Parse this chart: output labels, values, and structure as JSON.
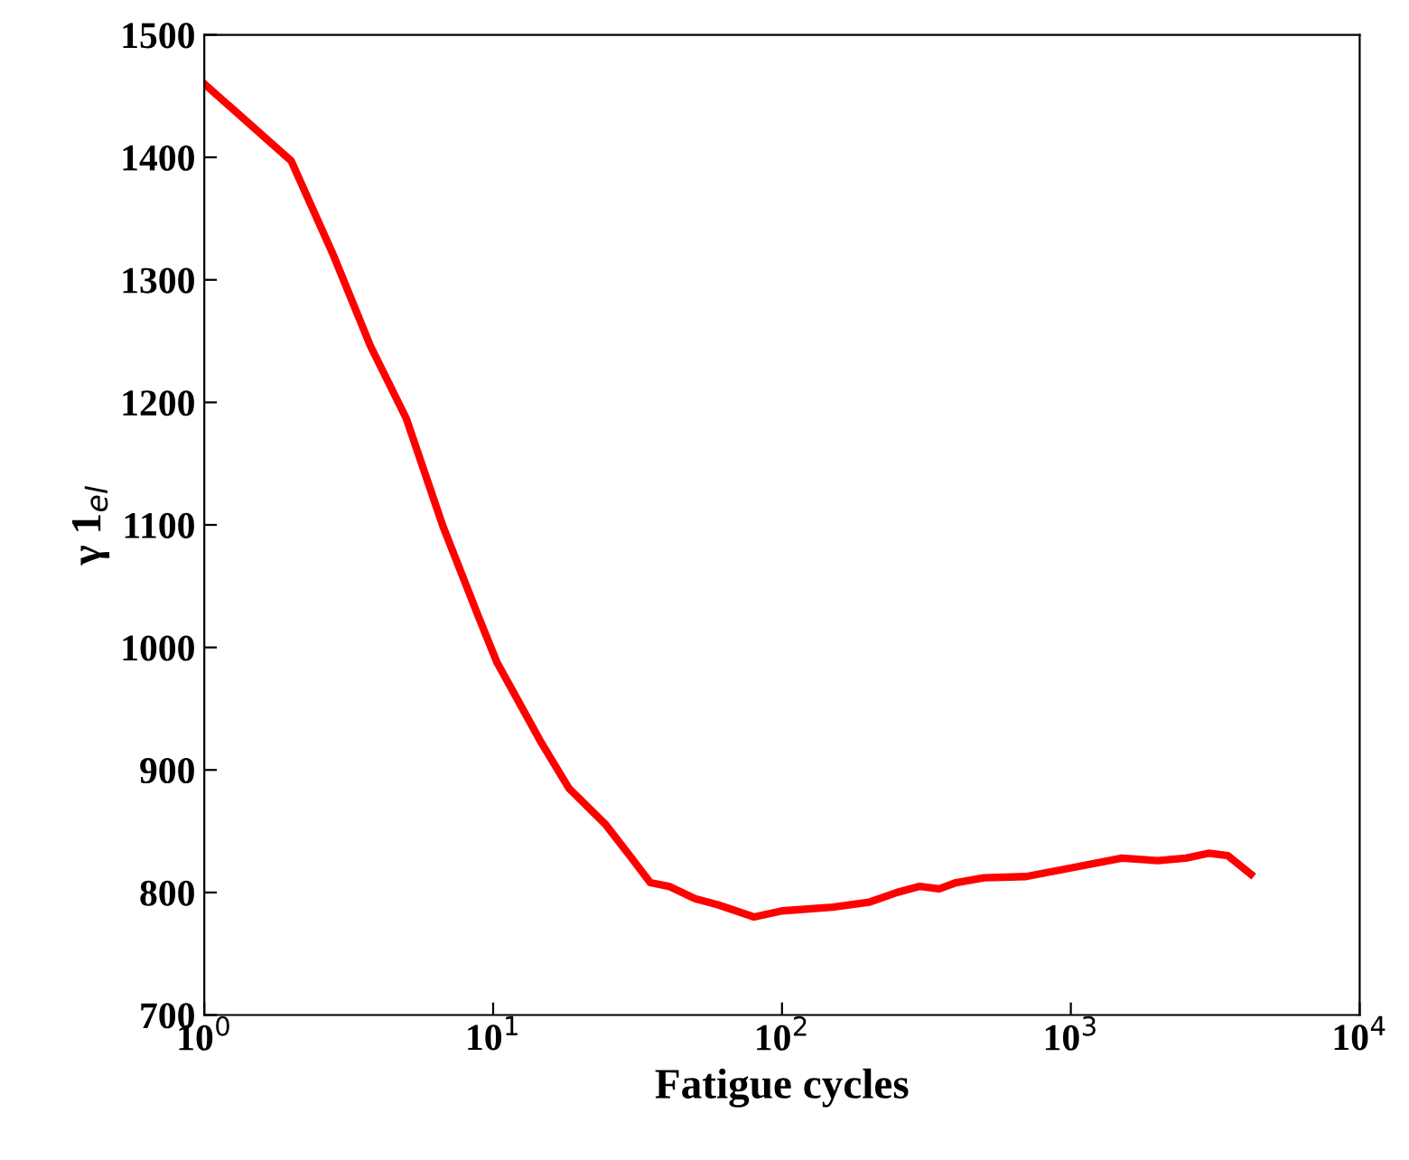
{
  "chart_data": {
    "type": "line",
    "xlabel": "Fatigue cycles",
    "ylabel": "γ 1$_{el}$",
    "log": "x",
    "series": [
      {
        "color": "#ff0000",
        "x": [
          1,
          2,
          2.8,
          3.76,
          5,
          6.7,
          8.9,
          10.3,
          14.7,
          18.3,
          24.4,
          30.4,
          35,
          40.6,
          50,
          60,
          80,
          100,
          150,
          200,
          250,
          300,
          350,
          400,
          500,
          700,
          1000,
          1500,
          2000,
          2500,
          3000,
          3500,
          4200
        ],
        "values": [
          1460,
          1397,
          1320,
          1246,
          1187,
          1099,
          1025,
          988,
          922,
          885,
          856,
          827,
          808,
          805,
          795,
          790,
          780,
          785,
          788,
          792,
          800,
          805,
          803,
          808,
          812,
          813,
          820,
          828,
          826,
          828,
          832,
          830,
          815
        ]
      }
    ],
    "xlim": [
      1,
      10000
    ],
    "xticks": [
      {
        "value": 1,
        "label": "10$^{0}$"
      },
      {
        "value": 10,
        "label": "10$^{1}$"
      },
      {
        "value": 100,
        "label": "10$^{2}$"
      },
      {
        "value": 1000,
        "label": "10$^{3}$"
      },
      {
        "value": 10000,
        "label": "10$^{4}$"
      }
    ],
    "ylim": [
      700,
      1500
    ],
    "yticks": [
      700,
      800,
      900,
      1000,
      1100,
      1200,
      1300,
      1400,
      1500
    ],
    "grid": false
  }
}
